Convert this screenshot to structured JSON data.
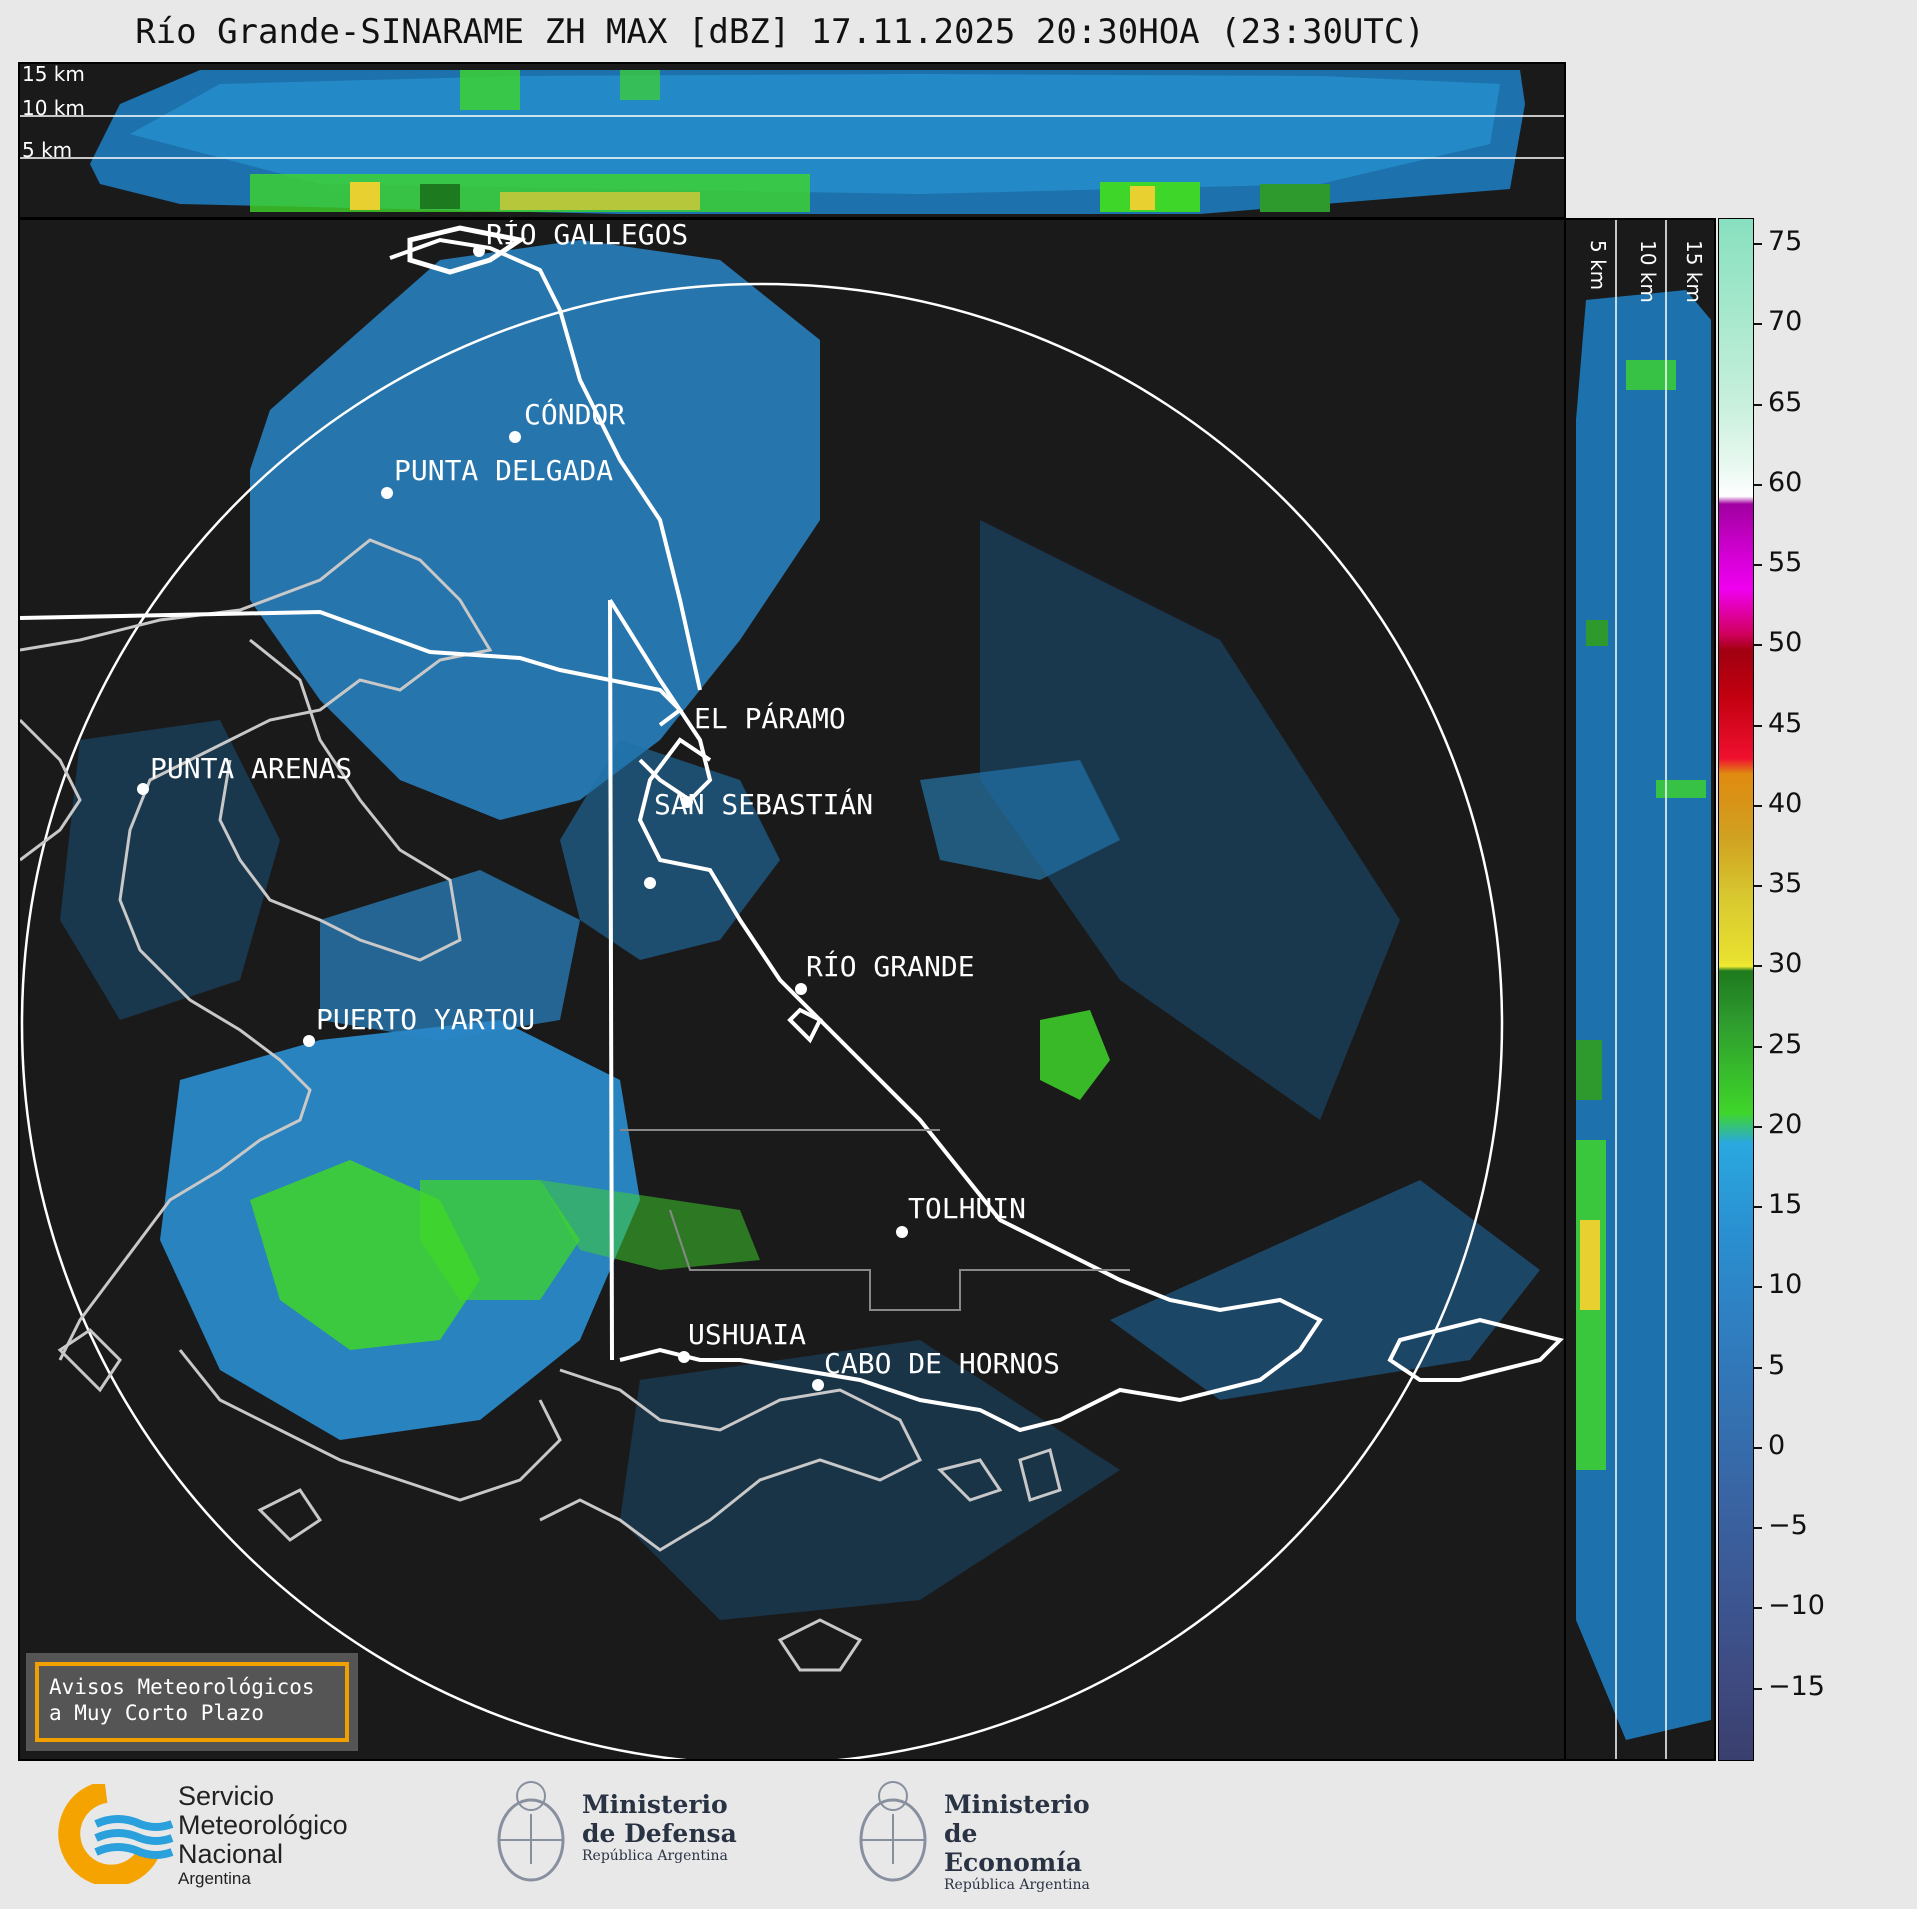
{
  "title": "Río Grande-SINARAME ZH MAX [dBZ] 17.11.2025 20:30HOA (23:30UTC)",
  "top_panel": {
    "altitudes": [
      "15 km",
      "10 km",
      "5 km"
    ]
  },
  "side_panel": {
    "altitudes": [
      "5 km",
      "10 km",
      "15 km"
    ]
  },
  "cities": [
    {
      "name": "RÍO GALLEGOS"
    },
    {
      "name": "CÓNDOR"
    },
    {
      "name": "PUNTA DELGADA"
    },
    {
      "name": "EL PÁRAMO"
    },
    {
      "name": "SAN SEBASTIÁN"
    },
    {
      "name": "PUNTA ARENAS"
    },
    {
      "name": "RÍO GRANDE"
    },
    {
      "name": "PUERTO YARTOU"
    },
    {
      "name": "TOLHUIN"
    },
    {
      "name": "USHUAIA"
    },
    {
      "name": "CABO DE HORNOS"
    }
  ],
  "colorbar": {
    "unit": "dBZ",
    "ticks": [
      "75",
      "70",
      "65",
      "60",
      "55",
      "50",
      "45",
      "40",
      "35",
      "30",
      "25",
      "20",
      "15",
      "10",
      "5",
      "0",
      "−5",
      "−10",
      "−15"
    ],
    "colors": {
      "low": "#3a3f6e",
      "mid_blue": "#2a8fd0",
      "green": "#3fd62a",
      "yellow": "#f0ea30",
      "orange": "#e08a10",
      "red": "#c20010",
      "magenta": "#e000e0",
      "white": "#ffffff",
      "mint": "#88e0c0"
    }
  },
  "avisos": {
    "line1": "Avisos Meteorológicos",
    "line2": "a Muy Corto Plazo"
  },
  "logos": {
    "smn": {
      "line1": "Servicio",
      "line2": "Meteorológico",
      "line3": "Nacional",
      "line4": "Argentina"
    },
    "defensa": {
      "line1": "Ministerio",
      "line2": "de Defensa",
      "line3": "República Argentina"
    },
    "economia": {
      "line1": "Ministerio",
      "line2": "de Economía",
      "line3": "República Argentina"
    }
  }
}
